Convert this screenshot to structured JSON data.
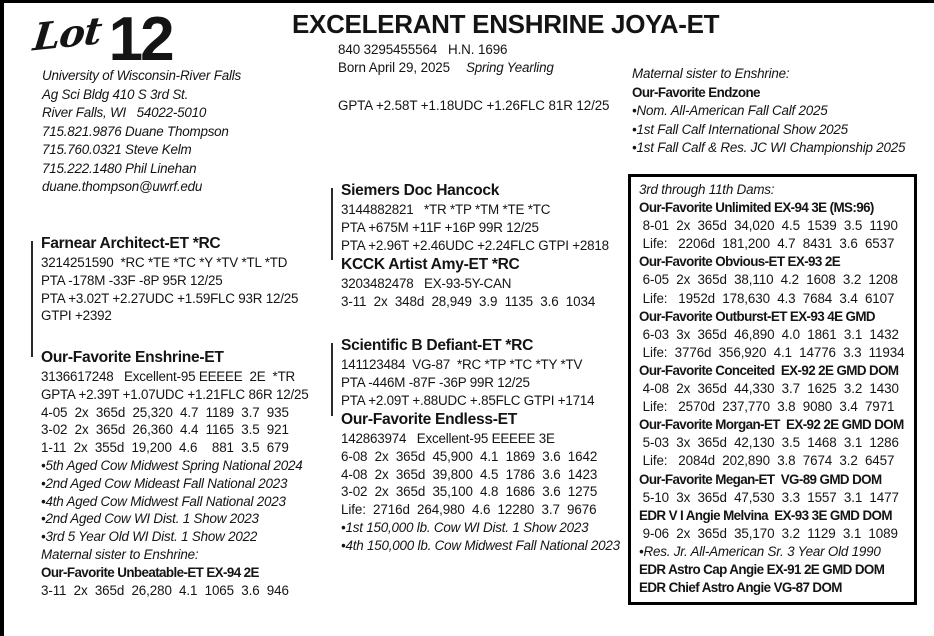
{
  "page": {
    "lot_label": "Lot",
    "lot_number": "12",
    "title": "EXCELERANT ENSHRINE JOYA-ET"
  },
  "animal": {
    "reg_line": "840 3295455564   H.N. 1696",
    "born": "Born April 29, 2025",
    "age_class": "Spring Yearling",
    "gpta_line": "GPTA +2.58T +1.18UDC +1.26FLC 81R 12/25"
  },
  "consignor": {
    "lines": [
      {
        "t": "University of Wisconsin-River Falls",
        "s": "i"
      },
      {
        "t": "Ag Sci Bldg 410 S 3rd St.",
        "s": "i"
      },
      {
        "t": "River Falls, WI   54022-5010",
        "s": "i"
      },
      {
        "t": "715.821.9876 Duane Thompson",
        "s": "i"
      },
      {
        "t": "715.760.0321 Steve Kelm",
        "s": "i"
      },
      {
        "t": "715.222.1480 Phil Linehan",
        "s": "i"
      },
      {
        "t": "duane.thompson@uwrf.edu",
        "s": "i"
      }
    ]
  },
  "maternal_sister_top": {
    "label": "Maternal sister to Enshrine:",
    "name": "Our-Favorite Endzone",
    "bullets": [
      {
        "t": "•Nom. All-American Fall Calf 2025",
        "s": "i"
      },
      {
        "t": "•1st Fall Calf International Show 2025",
        "s": "i"
      },
      {
        "t": "•1st Fall Calf & Res. JC WI Championship 2025",
        "s": "i"
      }
    ]
  },
  "pedigree_left": {
    "sire": {
      "name": "Farnear Architect-ET *RC",
      "lines": [
        {
          "t": "3214251590  *RC *TE *TC *Y *TV *TL *TD",
          "s": "r"
        },
        {
          "t": "PTA -178M -33F -8P 95R 12/25",
          "s": "r"
        },
        {
          "t": "PTA +3.02T +2.27UDC +1.59FLC 93R 12/25",
          "s": "r"
        },
        {
          "t": "GTPI +2392",
          "s": "r"
        }
      ]
    },
    "dam": {
      "name": "Our-Favorite Enshrine-ET",
      "lines": [
        {
          "t": "3136617248   Excellent-95 EEEEE  2E  *TR",
          "s": "r"
        },
        {
          "t": "GPTA +2.39T +1.07UDC +1.21FLC 86R 12/25",
          "s": "r"
        },
        {
          "t": "4-05  2x  365d  25,320  4.7  1189  3.7  935",
          "s": "row"
        },
        {
          "t": "3-02  2x  365d  26,360  4.4  1165  3.5  921",
          "s": "row"
        },
        {
          "t": "1-11  2x  355d  19,200  4.6    881  3.5  679",
          "s": "row"
        },
        {
          "t": "•5th Aged Cow Midwest Spring National 2024",
          "s": "i"
        },
        {
          "t": "•2nd Aged Cow Mideast Fall National 2023",
          "s": "i"
        },
        {
          "t": "•4th Aged Cow Midwest Fall National 2023",
          "s": "i"
        },
        {
          "t": "•2nd Aged Cow WI Dist. 1 Show 2023",
          "s": "i"
        },
        {
          "t": "•3rd 5 Year Old WI Dist. 1 Show 2022",
          "s": "i"
        },
        {
          "t": "Maternal sister to Enshrine:",
          "s": "i"
        },
        {
          "t": "Our-Favorite Unbeatable-ET EX-94 2E",
          "s": "bc"
        },
        {
          "t": "3-11  2x  365d  26,280  4.1  1065  3.6  946",
          "s": "row"
        }
      ]
    }
  },
  "pedigree_mid_top": {
    "sire": {
      "name": "Siemers Doc Hancock",
      "lines": [
        {
          "t": "3144882821   *TR *TP *TM *TE *TC",
          "s": "r"
        },
        {
          "t": "PTA +675M +11F +16P 99R 12/25",
          "s": "r"
        },
        {
          "t": "PTA +2.96T +2.46UDC +2.24FLC GTPI +2818",
          "s": "r"
        }
      ]
    },
    "dam": {
      "name": "KCCK Artist Amy-ET *RC",
      "lines": [
        {
          "t": "3203482478   EX-93-5Y-CAN",
          "s": "r"
        },
        {
          "t": "3-11  2x  348d  28,949  3.9  1135  3.6  1034",
          "s": "row"
        }
      ]
    }
  },
  "pedigree_mid_bottom": {
    "sire": {
      "name": "Scientific B Defiant-ET *RC",
      "lines": [
        {
          "t": "141123484  VG-87  *RC *TP *TC *TY *TV",
          "s": "r"
        },
        {
          "t": "PTA -446M -87F -36P 99R 12/25",
          "s": "r"
        },
        {
          "t": "PTA +2.09T +.88UDC +.85FLC GTPI +1714",
          "s": "r"
        }
      ]
    },
    "dam": {
      "name": "Our-Favorite Endless-ET",
      "lines": [
        {
          "t": "142863974   Excellent-95 EEEEE 3E",
          "s": "r"
        },
        {
          "t": "6-08  2x  365d  45,900  4.1  1869  3.6  1642",
          "s": "row"
        },
        {
          "t": "4-08  2x  365d  39,800  4.5  1786  3.6  1423",
          "s": "row"
        },
        {
          "t": "3-02  2x  365d  35,100  4.8  1686  3.6  1275",
          "s": "row"
        },
        {
          "t": "Life:  2716d  264,980  4.6  12280  3.7  9676",
          "s": "row"
        },
        {
          "t": "•1st 150,000 lb. Cow WI Dist. 1 Show 2023",
          "s": "i"
        },
        {
          "t": "•4th 150,000 lb. Cow Midwest Fall National 2023",
          "s": "i"
        }
      ]
    }
  },
  "dams_box": {
    "title": "3rd through 11th Dams:",
    "lines": [
      {
        "t": "Our-Favorite Unlimited EX-94 3E (MS:96)",
        "s": "bc"
      },
      {
        "t": " 8-01  2x  365d  34,020  4.5  1539  3.5  1190",
        "s": "row"
      },
      {
        "t": " Life:   2206d  181,200  4.7  8431  3.6  6537",
        "s": "row"
      },
      {
        "t": "Our-Favorite Obvious-ET EX-93 2E",
        "s": "bc"
      },
      {
        "t": " 6-05  2x  365d  38,110  4.2  1608  3.2  1208",
        "s": "row"
      },
      {
        "t": " Life:   1952d  178,630  4.3  7684  3.4  6107",
        "s": "row"
      },
      {
        "t": "Our-Favorite Outburst-ET EX-93 4E GMD",
        "s": "bc"
      },
      {
        "t": " 6-03  3x  365d  46,890  4.0  1861  3.1  1432",
        "s": "row"
      },
      {
        "t": " Life:  3776d  356,920  4.1  14776  3.3  11934",
        "s": "row"
      },
      {
        "t": "Our-Favorite Conceited  EX-92 2E GMD DOM",
        "s": "bc"
      },
      {
        "t": " 4-08  2x  365d  44,330  3.7  1625  3.2  1430",
        "s": "row"
      },
      {
        "t": " Life:   2570d  237,770  3.8  9080  3.4  7971",
        "s": "row"
      },
      {
        "t": "Our-Favorite Morgan-ET  EX-92 2E GMD DOM",
        "s": "bc"
      },
      {
        "t": " 5-03  3x  365d  42,130  3.5  1468  3.1  1286",
        "s": "row"
      },
      {
        "t": " Life:   2084d  202,890  3.8  7674  3.2  6457",
        "s": "row"
      },
      {
        "t": "Our-Favorite Megan-ET  VG-89 GMD DOM",
        "s": "bc"
      },
      {
        "t": " 5-10  3x  365d  47,530  3.3  1557  3.1  1477",
        "s": "row"
      },
      {
        "t": "EDR V I Angie Melvina  EX-93 3E GMD DOM",
        "s": "bc"
      },
      {
        "t": " 9-06  2x  365d  35,170  3.2  1129  3.1  1089",
        "s": "row"
      },
      {
        "t": "•Res. Jr. All-American Sr. 3 Year Old 1990",
        "s": "i"
      },
      {
        "t": "EDR Astro Cap Angie EX-91 2E GMD DOM",
        "s": "bc"
      },
      {
        "t": "EDR Chief Astro Angie VG-87 DOM",
        "s": "bc"
      }
    ]
  }
}
